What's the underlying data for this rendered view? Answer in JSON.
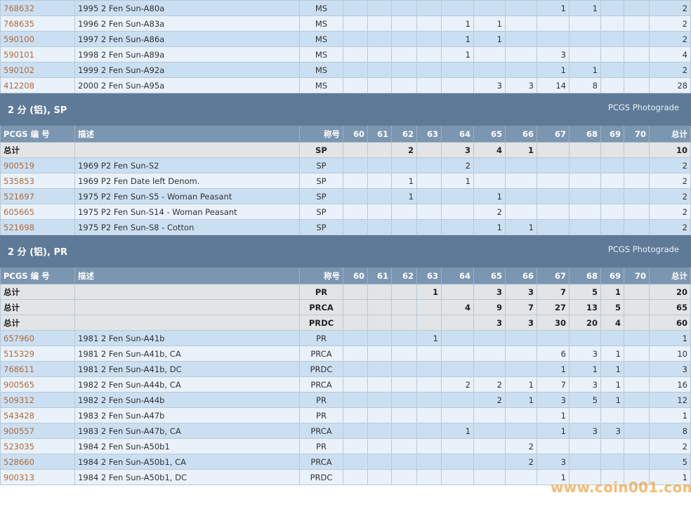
{
  "headers": {
    "id": "PCGS 编 号",
    "desc": "描述",
    "designation": "称号",
    "grades": [
      "60",
      "61",
      "62",
      "63",
      "64",
      "65",
      "66",
      "67",
      "68",
      "69",
      "70"
    ],
    "total": "总计"
  },
  "sections": [
    {
      "title": "",
      "link": "",
      "show_header": false,
      "totals": [],
      "rows": [
        {
          "id": "768632",
          "desc": "1995 2 Fen Sun-A80a",
          "des": "MS",
          "g": [
            "",
            "",
            "",
            "",
            "",
            "",
            "",
            "1",
            "1",
            "",
            ""
          ],
          "total": "2"
        },
        {
          "id": "768635",
          "desc": "1996 2 Fen Sun-A83a",
          "des": "MS",
          "g": [
            "",
            "",
            "",
            "",
            "1",
            "1",
            "",
            "",
            "",
            "",
            ""
          ],
          "total": "2"
        },
        {
          "id": "590100",
          "desc": "1997 2 Fen Sun-A86a",
          "des": "MS",
          "g": [
            "",
            "",
            "",
            "",
            "1",
            "1",
            "",
            "",
            "",
            "",
            ""
          ],
          "total": "2"
        },
        {
          "id": "590101",
          "desc": "1998 2 Fen Sun-A89a",
          "des": "MS",
          "g": [
            "",
            "",
            "",
            "",
            "1",
            "",
            "",
            "3",
            "",
            "",
            ""
          ],
          "total": "4"
        },
        {
          "id": "590102",
          "desc": "1999 2 Fen Sun-A92a",
          "des": "MS",
          "g": [
            "",
            "",
            "",
            "",
            "",
            "",
            "",
            "1",
            "1",
            "",
            ""
          ],
          "total": "2"
        },
        {
          "id": "412208",
          "desc": "2000 2 Fen Sun-A95a",
          "des": "MS",
          "g": [
            "",
            "",
            "",
            "",
            "",
            "3",
            "3",
            "14",
            "8",
            "",
            ""
          ],
          "total": "28"
        }
      ]
    },
    {
      "title": "2 分 (铝), SP",
      "link": "PCGS Photograde",
      "show_header": true,
      "totals": [
        {
          "label": "总计",
          "des": "SP",
          "g": [
            "",
            "",
            "2",
            "",
            "3",
            "4",
            "1",
            "",
            "",
            "",
            ""
          ],
          "total": "10"
        }
      ],
      "rows": [
        {
          "id": "900519",
          "desc": "1969 P2 Fen Sun-S2",
          "des": "SP",
          "g": [
            "",
            "",
            "",
            "",
            "2",
            "",
            "",
            "",
            "",
            "",
            ""
          ],
          "total": "2"
        },
        {
          "id": "535853",
          "desc": "1969 P2 Fen Date left Denom.",
          "des": "SP",
          "g": [
            "",
            "",
            "1",
            "",
            "1",
            "",
            "",
            "",
            "",
            "",
            ""
          ],
          "total": "2"
        },
        {
          "id": "521697",
          "desc": "1975 P2 Fen Sun-S5 - Woman Peasant",
          "des": "SP",
          "g": [
            "",
            "",
            "1",
            "",
            "",
            "1",
            "",
            "",
            "",
            "",
            ""
          ],
          "total": "2"
        },
        {
          "id": "605665",
          "desc": "1975 P2 Fen Sun-S14 - Woman Peasant",
          "des": "SP",
          "g": [
            "",
            "",
            "",
            "",
            "",
            "2",
            "",
            "",
            "",
            "",
            ""
          ],
          "total": "2"
        },
        {
          "id": "521698",
          "desc": "1975 P2 Fen Sun-S8 - Cotton",
          "des": "SP",
          "g": [
            "",
            "",
            "",
            "",
            "",
            "1",
            "1",
            "",
            "",
            "",
            ""
          ],
          "total": "2"
        }
      ]
    },
    {
      "title": "2 分 (铝), PR",
      "link": "PCGS Photograde",
      "show_header": true,
      "totals": [
        {
          "label": "总计",
          "des": "PR",
          "g": [
            "",
            "",
            "",
            "1",
            "",
            "3",
            "3",
            "7",
            "5",
            "1",
            ""
          ],
          "total": "20"
        },
        {
          "label": "总计",
          "des": "PRCA",
          "g": [
            "",
            "",
            "",
            "",
            "4",
            "9",
            "7",
            "27",
            "13",
            "5",
            ""
          ],
          "total": "65"
        },
        {
          "label": "总计",
          "des": "PRDC",
          "g": [
            "",
            "",
            "",
            "",
            "",
            "3",
            "3",
            "30",
            "20",
            "4",
            ""
          ],
          "total": "60"
        }
      ],
      "rows": [
        {
          "id": "657960",
          "desc": "1981 2 Fen Sun-A41b",
          "des": "PR",
          "g": [
            "",
            "",
            "",
            "1",
            "",
            "",
            "",
            "",
            "",
            "",
            ""
          ],
          "total": "1"
        },
        {
          "id": "515329",
          "desc": "1981 2 Fen Sun-A41b, CA",
          "des": "PRCA",
          "g": [
            "",
            "",
            "",
            "",
            "",
            "",
            "",
            "6",
            "3",
            "1",
            ""
          ],
          "total": "10"
        },
        {
          "id": "768611",
          "desc": "1981 2 Fen Sun-A41b, DC",
          "des": "PRDC",
          "g": [
            "",
            "",
            "",
            "",
            "",
            "",
            "",
            "1",
            "1",
            "1",
            ""
          ],
          "total": "3"
        },
        {
          "id": "900565",
          "desc": "1982 2 Fen Sun-A44b, CA",
          "des": "PRCA",
          "g": [
            "",
            "",
            "",
            "",
            "2",
            "2",
            "1",
            "7",
            "3",
            "1",
            ""
          ],
          "total": "16"
        },
        {
          "id": "509312",
          "desc": "1982 2 Fen Sun-A44b",
          "des": "PR",
          "g": [
            "",
            "",
            "",
            "",
            "",
            "2",
            "1",
            "3",
            "5",
            "1",
            ""
          ],
          "total": "12"
        },
        {
          "id": "543428",
          "desc": "1983 2 Fen Sun-A47b",
          "des": "PR",
          "g": [
            "",
            "",
            "",
            "",
            "",
            "",
            "",
            "1",
            "",
            "",
            ""
          ],
          "total": "1"
        },
        {
          "id": "900557",
          "desc": "1983 2 Fen Sun-A47b, CA",
          "des": "PRCA",
          "g": [
            "",
            "",
            "",
            "",
            "1",
            "",
            "",
            "1",
            "3",
            "3",
            ""
          ],
          "total": "8"
        },
        {
          "id": "523035",
          "desc": "1984 2 Fen Sun-A50b1",
          "des": "PR",
          "g": [
            "",
            "",
            "",
            "",
            "",
            "",
            "2",
            "",
            "",
            "",
            ""
          ],
          "total": "2"
        },
        {
          "id": "528660",
          "desc": "1984 2 Fen Sun-A50b1, CA",
          "des": "PRCA",
          "g": [
            "",
            "",
            "",
            "",
            "",
            "",
            "2",
            "3",
            "",
            "",
            ""
          ],
          "total": "5"
        },
        {
          "id": "900313",
          "desc": "1984 2 Fen Sun-A50b1, DC",
          "des": "PRDC",
          "g": [
            "",
            "",
            "",
            "",
            "",
            "",
            "",
            "1",
            "",
            "",
            ""
          ],
          "total": "1"
        }
      ]
    }
  ],
  "watermark": "www.coin001.com"
}
